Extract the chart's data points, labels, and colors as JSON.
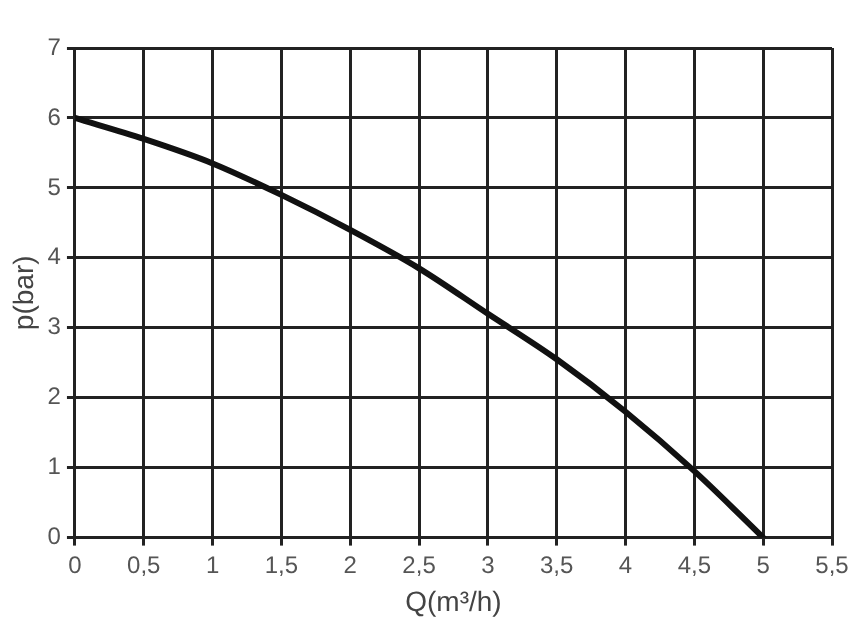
{
  "chart_data": {
    "type": "line",
    "xlabel": "Q(m³/h)",
    "ylabel": "p(bar)",
    "x": [
      0,
      0.5,
      1,
      1.5,
      2,
      2.5,
      3,
      3.5,
      4,
      4.5,
      5
    ],
    "series": [
      {
        "color": "#111111",
        "values": [
          6,
          5.7,
          5.35,
          4.9,
          4.4,
          3.85,
          3.2,
          2.55,
          1.8,
          0.95,
          0
        ]
      }
    ],
    "xlim": [
      0,
      5.5
    ],
    "ylim": [
      0,
      7
    ],
    "xticks": [
      0,
      {
        "value": 0.5,
        "label": "0,5"
      },
      1,
      {
        "value": 1.5,
        "label": "1,5"
      },
      2,
      {
        "value": 2.5,
        "label": "2,5"
      },
      3,
      {
        "value": 3.5,
        "label": "3,5"
      },
      4,
      {
        "value": 4.5,
        "label": "4,5"
      },
      5,
      {
        "value": 5.5,
        "label": "5,5"
      }
    ],
    "yticks": [
      0,
      1,
      2,
      3,
      4,
      5,
      6,
      7
    ],
    "grid": true,
    "marker": "none",
    "line_style": "solid",
    "legend": false
  }
}
